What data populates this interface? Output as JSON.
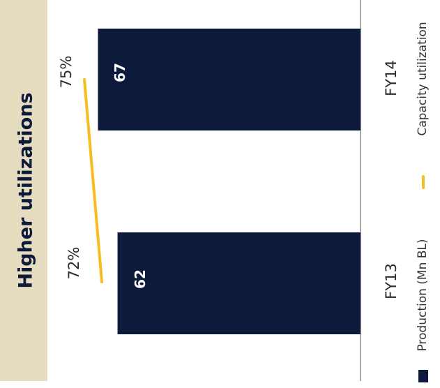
{
  "chart_data": {
    "type": "bar",
    "orientation": "rotated-90-ccw",
    "title": "Higher utilizations",
    "categories": [
      "FY13",
      "FY14"
    ],
    "series": [
      {
        "name": "Production (Mn BL)",
        "kind": "bar",
        "values": [
          62,
          67
        ],
        "value_labels": [
          "62",
          "67"
        ],
        "color": "#0e1a3c"
      },
      {
        "name": "Capacity utilization",
        "kind": "line",
        "values": [
          72,
          75
        ],
        "value_labels": [
          "72%",
          "75%"
        ],
        "color": "#f5bd1f"
      }
    ],
    "legend": {
      "placement": "bottom"
    },
    "colors": {
      "title_band": "#e6ddc0",
      "axis": "#8c8c8c"
    }
  }
}
